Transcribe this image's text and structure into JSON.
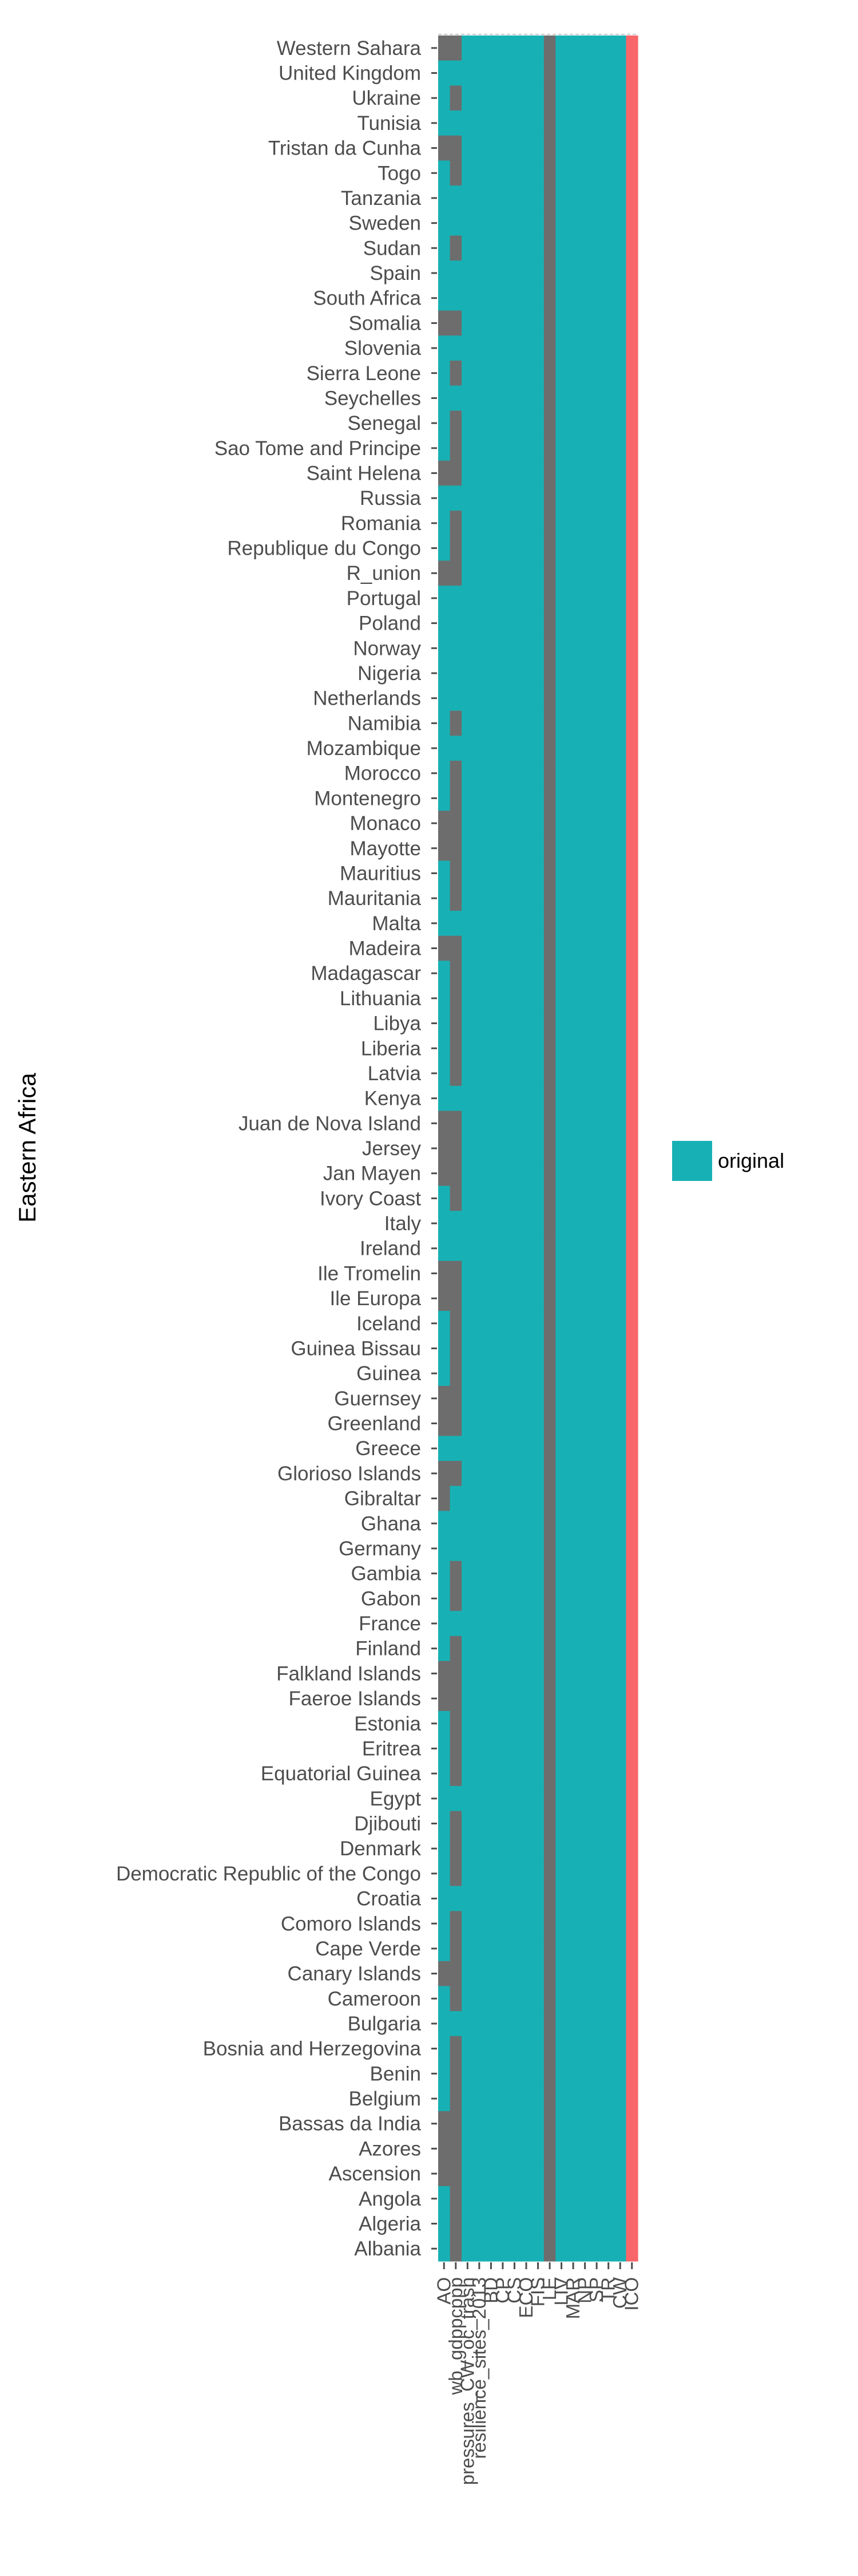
{
  "chart_data": {
    "type": "heatmap",
    "title": "",
    "xlabel": "",
    "ylabel": "Eastern Africa",
    "legend": {
      "position": "right",
      "entries": [
        {
          "label": "original",
          "color": "#17b1b5"
        }
      ]
    },
    "colors": {
      "present": "#17b1b5",
      "missing": "#6d6d6d",
      "status_ok": "#f8666a",
      "grid": "#ffffff"
    },
    "grid": false,
    "x_categories": [
      "AO",
      "wb_gdppcppp",
      "pressures_CW_oc_trash",
      "resilience_sites_2013",
      "BD",
      "CP",
      "CS",
      "ECO",
      "FIS",
      "LE",
      "LIV",
      "MAR",
      "NP",
      "SP",
      "TR",
      "CW",
      "ICO"
    ],
    "x_tick_labels": [
      "AO",
      "wb_gdppcppp",
      "pressures_CW_oc_trash",
      "resilience_sites_2013",
      "BD",
      "CP",
      "CS",
      "ECO",
      "FIS",
      "LE",
      "LIV",
      "MAR",
      "NP",
      "SP",
      "TR",
      "CW",
      "ICO"
    ],
    "rows": [
      {
        "name": "Western Sahara",
        "missing": [
          0,
          1
        ]
      },
      {
        "name": "United Kingdom",
        "missing": []
      },
      {
        "name": "Ukraine",
        "missing": [
          1
        ]
      },
      {
        "name": "Tunisia",
        "missing": []
      },
      {
        "name": "Tristan da Cunha",
        "missing": [
          0,
          1
        ]
      },
      {
        "name": "Togo",
        "missing": [
          1
        ]
      },
      {
        "name": "Tanzania",
        "missing": []
      },
      {
        "name": "Sweden",
        "missing": []
      },
      {
        "name": "Sudan",
        "missing": [
          1
        ]
      },
      {
        "name": "Spain",
        "missing": []
      },
      {
        "name": "South Africa",
        "missing": []
      },
      {
        "name": "Somalia",
        "missing": [
          0,
          1
        ]
      },
      {
        "name": "Slovenia",
        "missing": []
      },
      {
        "name": "Sierra Leone",
        "missing": [
          1
        ]
      },
      {
        "name": "Seychelles",
        "missing": []
      },
      {
        "name": "Senegal",
        "missing": [
          1
        ]
      },
      {
        "name": "Sao Tome and Principe",
        "missing": [
          1
        ]
      },
      {
        "name": "Saint Helena",
        "missing": [
          0,
          1
        ]
      },
      {
        "name": "Russia",
        "missing": []
      },
      {
        "name": "Romania",
        "missing": [
          1
        ]
      },
      {
        "name": "Republique du Congo",
        "missing": [
          1
        ]
      },
      {
        "name": "R_union",
        "missing": [
          0,
          1
        ]
      },
      {
        "name": "Portugal",
        "missing": []
      },
      {
        "name": "Poland",
        "missing": []
      },
      {
        "name": "Norway",
        "missing": []
      },
      {
        "name": "Nigeria",
        "missing": []
      },
      {
        "name": "Netherlands",
        "missing": []
      },
      {
        "name": "Namibia",
        "missing": [
          1
        ]
      },
      {
        "name": "Mozambique",
        "missing": []
      },
      {
        "name": "Morocco",
        "missing": [
          1
        ]
      },
      {
        "name": "Montenegro",
        "missing": [
          1
        ]
      },
      {
        "name": "Monaco",
        "missing": [
          0,
          1
        ]
      },
      {
        "name": "Mayotte",
        "missing": [
          0,
          1
        ]
      },
      {
        "name": "Mauritius",
        "missing": [
          1
        ]
      },
      {
        "name": "Mauritania",
        "missing": [
          1
        ]
      },
      {
        "name": "Malta",
        "missing": []
      },
      {
        "name": "Madeira",
        "missing": [
          0,
          1
        ]
      },
      {
        "name": "Madagascar",
        "missing": [
          1
        ]
      },
      {
        "name": "Lithuania",
        "missing": [
          1
        ]
      },
      {
        "name": "Libya",
        "missing": [
          1
        ]
      },
      {
        "name": "Liberia",
        "missing": [
          1
        ]
      },
      {
        "name": "Latvia",
        "missing": [
          1
        ]
      },
      {
        "name": "Kenya",
        "missing": []
      },
      {
        "name": "Juan de Nova Island",
        "missing": [
          0,
          1
        ]
      },
      {
        "name": "Jersey",
        "missing": [
          0,
          1
        ]
      },
      {
        "name": "Jan Mayen",
        "missing": [
          0,
          1
        ]
      },
      {
        "name": "Ivory Coast",
        "missing": [
          1
        ]
      },
      {
        "name": "Italy",
        "missing": []
      },
      {
        "name": "Ireland",
        "missing": []
      },
      {
        "name": "Ile Tromelin",
        "missing": [
          0,
          1
        ]
      },
      {
        "name": "Ile Europa",
        "missing": [
          0,
          1
        ]
      },
      {
        "name": "Iceland",
        "missing": [
          1
        ]
      },
      {
        "name": "Guinea Bissau",
        "missing": [
          1
        ]
      },
      {
        "name": "Guinea",
        "missing": [
          1
        ]
      },
      {
        "name": "Guernsey",
        "missing": [
          0,
          1
        ]
      },
      {
        "name": "Greenland",
        "missing": [
          0,
          1
        ]
      },
      {
        "name": "Greece",
        "missing": []
      },
      {
        "name": "Glorioso Islands",
        "missing": [
          0,
          1
        ]
      },
      {
        "name": "Gibraltar",
        "missing": [
          0
        ]
      },
      {
        "name": "Ghana",
        "missing": []
      },
      {
        "name": "Germany",
        "missing": []
      },
      {
        "name": "Gambia",
        "missing": [
          1
        ]
      },
      {
        "name": "Gabon",
        "missing": [
          1
        ]
      },
      {
        "name": "France",
        "missing": []
      },
      {
        "name": "Finland",
        "missing": [
          1
        ]
      },
      {
        "name": "Falkland Islands",
        "missing": [
          0,
          1
        ]
      },
      {
        "name": "Faeroe Islands",
        "missing": [
          0,
          1
        ]
      },
      {
        "name": "Estonia",
        "missing": [
          1
        ]
      },
      {
        "name": "Eritrea",
        "missing": [
          1
        ]
      },
      {
        "name": "Equatorial Guinea",
        "missing": [
          1
        ]
      },
      {
        "name": "Egypt",
        "missing": []
      },
      {
        "name": "Djibouti",
        "missing": [
          1
        ]
      },
      {
        "name": "Denmark",
        "missing": [
          1
        ]
      },
      {
        "name": "Democratic Republic of the Congo",
        "missing": [
          1
        ]
      },
      {
        "name": "Croatia",
        "missing": []
      },
      {
        "name": "Comoro Islands",
        "missing": [
          1
        ]
      },
      {
        "name": "Cape Verde",
        "missing": [
          1
        ]
      },
      {
        "name": "Canary Islands",
        "missing": [
          0,
          1
        ]
      },
      {
        "name": "Cameroon",
        "missing": [
          1
        ]
      },
      {
        "name": "Bulgaria",
        "missing": []
      },
      {
        "name": "Bosnia and Herzegovina",
        "missing": [
          1
        ]
      },
      {
        "name": "Benin",
        "missing": [
          1
        ]
      },
      {
        "name": "Belgium",
        "missing": [
          1
        ]
      },
      {
        "name": "Bassas da India",
        "missing": [
          0,
          1
        ]
      },
      {
        "name": "Azores",
        "missing": [
          0,
          1
        ]
      },
      {
        "name": "Ascension",
        "missing": [
          0,
          1
        ]
      },
      {
        "name": "Angola",
        "missing": [
          1
        ]
      },
      {
        "name": "Algeria",
        "missing": [
          1
        ]
      },
      {
        "name": "Albania",
        "missing": [
          1
        ]
      }
    ],
    "always_missing_columns": [
      9
    ],
    "status_columns": [
      16
    ]
  }
}
